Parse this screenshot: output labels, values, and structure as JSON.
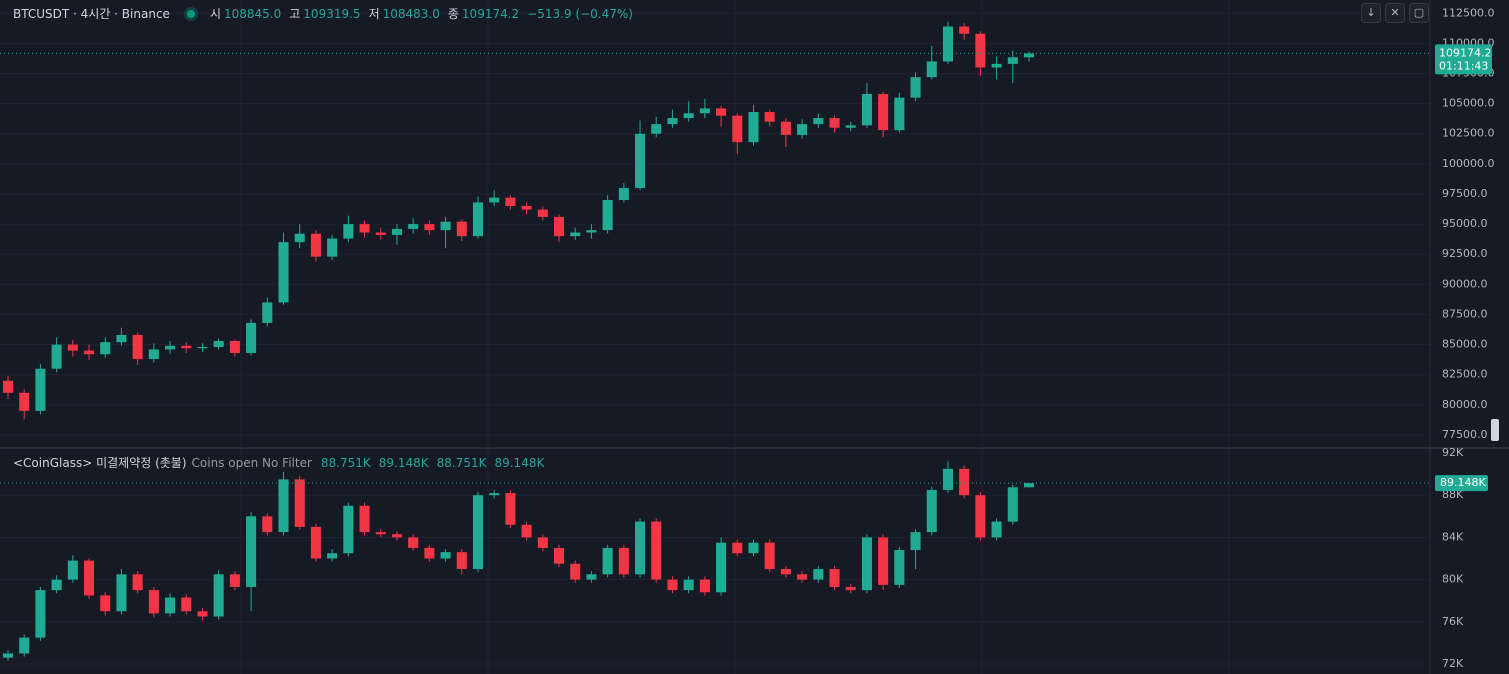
{
  "chart_data": [
    {
      "type": "candlestick",
      "title": "BTCUSDT · 4시간 · Binance",
      "ohlc_names": [
        "시",
        "고",
        "저",
        "종"
      ],
      "ohlc_labels": [
        "108845.0",
        "109319.5",
        "108483.0",
        "109174.2"
      ],
      "change_label": "−513.9 (−0.47%)",
      "countdown": "01:11:43",
      "up_color": "#22ab94",
      "down_color": "#f23645",
      "grid": true,
      "ylim": [
        76500,
        113600
      ],
      "yticks": [
        {
          "value": 77500,
          "label": "77500.0"
        },
        {
          "value": 80000,
          "label": "80000.0"
        },
        {
          "value": 82500,
          "label": "82500.0"
        },
        {
          "value": 85000,
          "label": "85000.0"
        },
        {
          "value": 87500,
          "label": "87500.0"
        },
        {
          "value": 90000,
          "label": "90000.0"
        },
        {
          "value": 92500,
          "label": "92500.0"
        },
        {
          "value": 95000,
          "label": "95000.0"
        },
        {
          "value": 97500,
          "label": "97500.0"
        },
        {
          "value": 100000,
          "label": "100000.0"
        },
        {
          "value": 102500,
          "label": "102500.0"
        },
        {
          "value": 105000,
          "label": "105000.0"
        },
        {
          "value": 107500,
          "label": "107500.0"
        },
        {
          "value": 110000,
          "label": "110000.0"
        },
        {
          "value": 112500,
          "label": "112500.0"
        }
      ],
      "open": [
        82000,
        81000,
        79500,
        83000,
        85000,
        84500,
        84200,
        85200,
        85800,
        83800,
        84600,
        84900,
        84700,
        84800,
        85300,
        84300,
        86800,
        88500,
        93500,
        94200,
        92300,
        93800,
        95000,
        94300,
        94100,
        94600,
        95000,
        94500,
        95200,
        94000,
        96800,
        97200,
        96500,
        96200,
        95600,
        94000,
        94300,
        94500,
        97000,
        98000,
        102500,
        103300,
        103800,
        104200,
        104600,
        104000,
        101800,
        104300,
        103500,
        102400,
        103300,
        103800,
        103000,
        103200,
        105800,
        102800,
        105500,
        107200,
        108500,
        111400,
        110800,
        108000,
        108300,
        108845
      ],
      "high": [
        82400,
        81300,
        83400,
        85600,
        85400,
        85000,
        85600,
        86400,
        86000,
        85100,
        85300,
        85200,
        85100,
        85500,
        85400,
        87100,
        88900,
        94300,
        95000,
        94500,
        94100,
        95700,
        95300,
        94700,
        95000,
        95500,
        95300,
        95600,
        95400,
        97300,
        97800,
        97400,
        96800,
        96500,
        95800,
        94700,
        95000,
        97400,
        98400,
        103600,
        103900,
        104500,
        105200,
        105400,
        104800,
        104200,
        104900,
        104500,
        103800,
        103700,
        104200,
        104000,
        103500,
        106700,
        106000,
        105900,
        107600,
        109800,
        111800,
        111700,
        111000,
        108900,
        109400,
        109319.5
      ],
      "low": [
        80500,
        78800,
        79200,
        82700,
        84000,
        83700,
        83900,
        84900,
        83300,
        83500,
        84200,
        84300,
        84400,
        84600,
        84000,
        84100,
        86500,
        88300,
        93000,
        91900,
        92000,
        93500,
        93900,
        93700,
        93300,
        94200,
        94100,
        93000,
        93600,
        93800,
        96500,
        96200,
        95800,
        95300,
        93500,
        93700,
        93800,
        94200,
        96800,
        97800,
        102200,
        103000,
        103500,
        103800,
        103100,
        100800,
        101500,
        103100,
        101400,
        102100,
        103000,
        102600,
        102700,
        103000,
        102200,
        102600,
        105200,
        107000,
        108300,
        110300,
        107300,
        107000,
        106700,
        108483
      ],
      "close": [
        81000,
        79500,
        83000,
        85000,
        84500,
        84200,
        85200,
        85800,
        83800,
        84600,
        84900,
        84700,
        84800,
        85300,
        84300,
        86800,
        88500,
        93500,
        94200,
        92300,
        93800,
        95000,
        94300,
        94100,
        94600,
        95000,
        94500,
        95200,
        94000,
        96800,
        97200,
        96500,
        96200,
        95600,
        94000,
        94300,
        94500,
        97000,
        98000,
        102500,
        103300,
        103800,
        104200,
        104600,
        104000,
        101800,
        104300,
        103500,
        102400,
        103300,
        103800,
        103000,
        103200,
        105800,
        102800,
        105500,
        107200,
        108500,
        111400,
        110800,
        108000,
        108300,
        108845,
        109174.2
      ]
    },
    {
      "type": "candlestick",
      "title": "<CoinGlass> 미결제약정 (촛불)",
      "subtitle": "Coins open No Filter",
      "ohlc_labels": [
        "88.751K",
        "89.148K",
        "88.751K",
        "89.148K"
      ],
      "last_label": "89.148K",
      "up_color": "#22ab94",
      "down_color": "#f23645",
      "grid": true,
      "ylim": [
        71050,
        92380
      ],
      "yticks": [
        {
          "value": 72000,
          "label": "72K"
        },
        {
          "value": 76000,
          "label": "76K"
        },
        {
          "value": 80000,
          "label": "80K"
        },
        {
          "value": 84000,
          "label": "84K"
        },
        {
          "value": 88000,
          "label": "88K"
        },
        {
          "value": 92000,
          "label": "92K"
        }
      ],
      "open": [
        72600,
        73000,
        74500,
        79000,
        80000,
        81800,
        78500,
        77000,
        80500,
        79000,
        76800,
        78300,
        77000,
        76500,
        80500,
        79300,
        86000,
        84500,
        89500,
        85000,
        82000,
        82500,
        87000,
        84500,
        84300,
        84000,
        83000,
        82000,
        82600,
        81000,
        88000,
        88200,
        85200,
        84000,
        83000,
        81500,
        80000,
        80500,
        83000,
        80500,
        85500,
        80000,
        79000,
        80000,
        78800,
        83500,
        82500,
        83500,
        81000,
        80500,
        80000,
        81000,
        79300,
        79000,
        84000,
        79500,
        82800,
        84500,
        88500,
        90500,
        88000,
        84000,
        85500,
        88751
      ],
      "high": [
        73300,
        74800,
        79300,
        80400,
        82300,
        82000,
        78800,
        81000,
        80800,
        79300,
        78700,
        78600,
        77300,
        80900,
        80800,
        86400,
        86300,
        90200,
        89800,
        85300,
        82900,
        87300,
        87300,
        84800,
        84600,
        84300,
        83300,
        82900,
        82900,
        88300,
        88500,
        88500,
        85500,
        84300,
        83300,
        81800,
        80800,
        83300,
        83300,
        85800,
        85800,
        80300,
        80300,
        80300,
        84000,
        83800,
        83800,
        83800,
        81300,
        80800,
        81300,
        81300,
        79600,
        84300,
        84300,
        83100,
        84800,
        88800,
        91200,
        90800,
        88300,
        85800,
        89000,
        89148
      ],
      "low": [
        72300,
        72700,
        74200,
        78700,
        79700,
        78200,
        76600,
        76700,
        78700,
        76400,
        76500,
        76700,
        76100,
        76200,
        79000,
        77000,
        84200,
        84200,
        84700,
        81700,
        81700,
        82200,
        84200,
        84000,
        83700,
        82700,
        81700,
        81700,
        80500,
        80700,
        87700,
        84900,
        83700,
        82700,
        81200,
        79700,
        79700,
        80200,
        80200,
        80200,
        79700,
        78700,
        78700,
        78500,
        78500,
        82200,
        82200,
        80700,
        80200,
        79700,
        79700,
        79000,
        78700,
        78700,
        79000,
        79200,
        81000,
        84200,
        88200,
        87700,
        83700,
        83700,
        85200,
        88751
      ],
      "close": [
        73000,
        74500,
        79000,
        80000,
        81800,
        78500,
        77000,
        80500,
        79000,
        76800,
        78300,
        77000,
        76500,
        80500,
        79300,
        86000,
        84500,
        89500,
        85000,
        82000,
        82500,
        87000,
        84500,
        84300,
        84000,
        83000,
        82000,
        82600,
        81000,
        88000,
        88200,
        85200,
        84000,
        83000,
        81500,
        80000,
        80500,
        83000,
        80500,
        85500,
        80000,
        79000,
        80000,
        78800,
        83500,
        82500,
        83500,
        81000,
        80500,
        80000,
        81000,
        79300,
        79000,
        84000,
        79500,
        82800,
        84500,
        88500,
        90500,
        88000,
        84000,
        85500,
        88751,
        89148
      ]
    }
  ]
}
